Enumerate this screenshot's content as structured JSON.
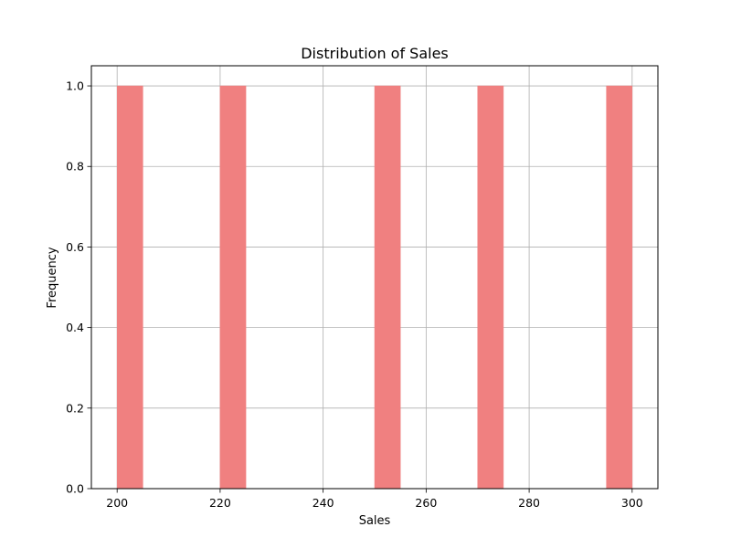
{
  "chart_data": {
    "type": "bar",
    "title": "Distribution of Sales",
    "xlabel": "Sales",
    "ylabel": "Frequency",
    "bins": [
      {
        "start": 200,
        "end": 205,
        "count": 1
      },
      {
        "start": 220,
        "end": 225,
        "count": 1
      },
      {
        "start": 250,
        "end": 255,
        "count": 1
      },
      {
        "start": 270,
        "end": 275,
        "count": 1
      },
      {
        "start": 295,
        "end": 300,
        "count": 1
      }
    ],
    "xlim": [
      195,
      305
    ],
    "ylim": [
      0,
      1.05
    ],
    "xticks": [
      200,
      220,
      240,
      260,
      280,
      300
    ],
    "yticks": [
      0.0,
      0.2,
      0.4,
      0.6,
      0.8,
      1.0
    ],
    "xtick_labels": [
      "200",
      "220",
      "240",
      "260",
      "280",
      "300"
    ],
    "ytick_labels": [
      "0.0",
      "0.2",
      "0.4",
      "0.6",
      "0.8",
      "1.0"
    ],
    "grid": true,
    "colors": {
      "bar": "#f08080",
      "bar_edge": "#f08080",
      "grid": "#b0b0b0",
      "axis": "#000000"
    }
  }
}
